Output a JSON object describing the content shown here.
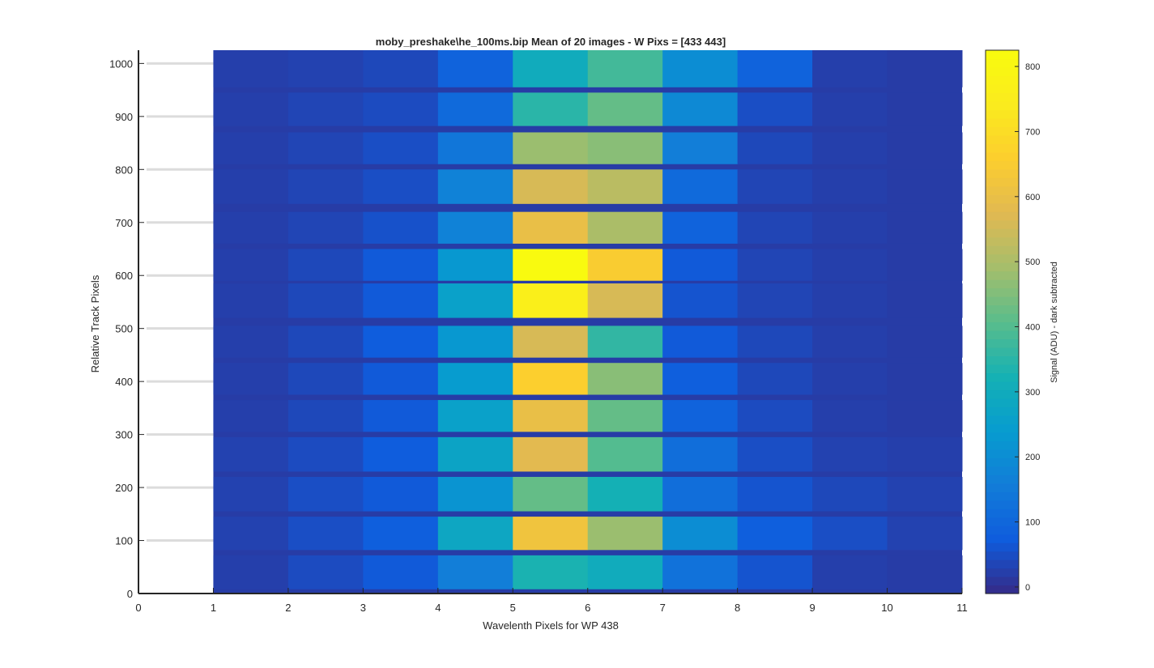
{
  "chart_data": {
    "type": "heatmap",
    "title": "moby_preshake\\he_100ms.bip  Mean of 20 images - W Pixs = [433  443]",
    "xlabel": "Wavelenth Pixels for WP 438",
    "ylabel": "Relative Track Pixels",
    "colorbar_label": "Signal (ADU) - dark subtracted",
    "colormap": "parula",
    "xlim": [
      0,
      11
    ],
    "ylim": [
      0,
      1025
    ],
    "clim": [
      -10,
      825
    ],
    "x_ticks": [
      "0",
      "1",
      "2",
      "3",
      "4",
      "5",
      "6",
      "7",
      "8",
      "9",
      "10",
      "11"
    ],
    "y_ticks": [
      "0",
      "100",
      "200",
      "300",
      "400",
      "500",
      "600",
      "700",
      "800",
      "900",
      "1000"
    ],
    "colorbar_ticks": [
      "0",
      "100",
      "200",
      "300",
      "400",
      "500",
      "600",
      "700",
      "800"
    ],
    "grid": "horizontal (partial)",
    "legend": "colorbar right",
    "columns": [
      1,
      2,
      3,
      4,
      5,
      6,
      7,
      8,
      9,
      10
    ],
    "row_bands": [
      {
        "y_from": 8,
        "y_to": 72,
        "values": [
          25,
          45,
          70,
          160,
          330,
          300,
          130,
          60,
          25,
          20
        ]
      },
      {
        "y_from": 82,
        "y_to": 145,
        "values": [
          30,
          50,
          80,
          280,
          620,
          480,
          200,
          80,
          50,
          30
        ]
      },
      {
        "y_from": 155,
        "y_to": 220,
        "values": [
          30,
          50,
          70,
          220,
          420,
          320,
          120,
          60,
          40,
          30
        ]
      },
      {
        "y_from": 230,
        "y_to": 295,
        "values": [
          30,
          45,
          75,
          270,
          580,
          400,
          120,
          50,
          30,
          25
        ]
      },
      {
        "y_from": 305,
        "y_to": 365,
        "values": [
          25,
          40,
          70,
          260,
          600,
          420,
          90,
          45,
          25,
          20
        ]
      },
      {
        "y_from": 375,
        "y_to": 435,
        "values": [
          25,
          40,
          70,
          240,
          660,
          460,
          80,
          40,
          25,
          20
        ]
      },
      {
        "y_from": 445,
        "y_to": 505,
        "values": [
          25,
          40,
          75,
          230,
          560,
          360,
          70,
          40,
          25,
          20
        ]
      },
      {
        "y_from": 520,
        "y_to": 585,
        "values": [
          25,
          40,
          70,
          260,
          760,
          560,
          60,
          35,
          25,
          20
        ]
      },
      {
        "y_from": 590,
        "y_to": 650,
        "values": [
          25,
          40,
          70,
          230,
          820,
          650,
          70,
          35,
          25,
          20
        ]
      },
      {
        "y_from": 660,
        "y_to": 720,
        "values": [
          25,
          35,
          55,
          170,
          600,
          500,
          90,
          35,
          25,
          20
        ]
      },
      {
        "y_from": 735,
        "y_to": 800,
        "values": [
          25,
          35,
          50,
          170,
          560,
          520,
          110,
          35,
          25,
          20
        ]
      },
      {
        "y_from": 810,
        "y_to": 870,
        "values": [
          25,
          35,
          50,
          140,
          480,
          460,
          160,
          40,
          25,
          20
        ]
      },
      {
        "y_from": 882,
        "y_to": 945,
        "values": [
          25,
          35,
          45,
          110,
          350,
          420,
          190,
          50,
          25,
          20
        ]
      },
      {
        "y_from": 955,
        "y_to": 1025,
        "values": [
          25,
          30,
          40,
          90,
          300,
          380,
          200,
          90,
          25,
          20
        ]
      }
    ],
    "gap_value": 20
  }
}
